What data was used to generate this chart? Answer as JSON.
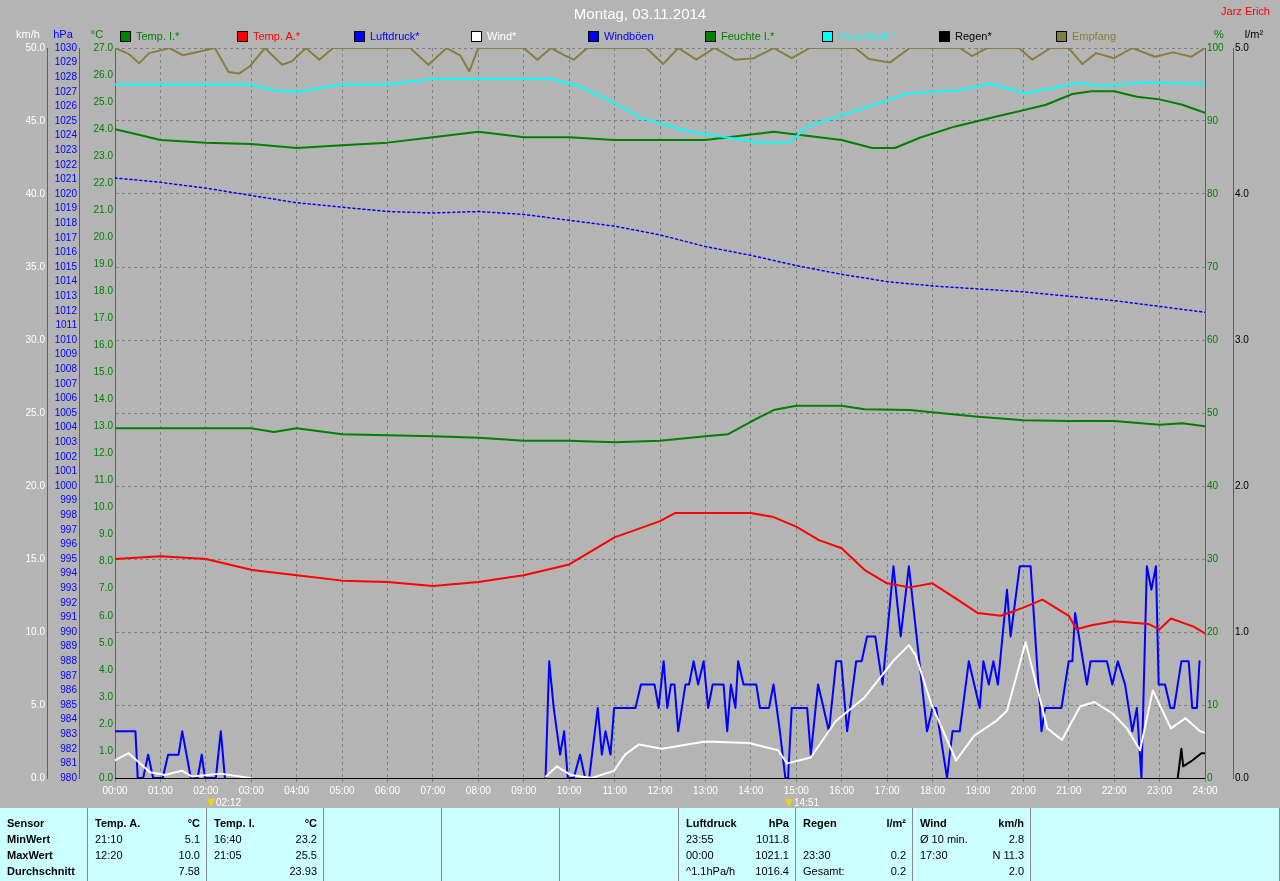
{
  "chart_data": [
    {
      "type": "line",
      "title": "Montag, 03.11.2014",
      "xlim": [
        0,
        24
      ],
      "xticks": [
        {
          "value": 0,
          "label": "00:00"
        },
        {
          "value": 1,
          "label": "01:00"
        },
        {
          "value": 2,
          "label": "02:00"
        },
        {
          "value": 3,
          "label": "03:00"
        },
        {
          "value": 4,
          "label": "04:00"
        },
        {
          "value": 5,
          "label": "05:00"
        },
        {
          "value": 6,
          "label": "06:00"
        },
        {
          "value": 7,
          "label": "07:00"
        },
        {
          "value": 8,
          "label": "08:00"
        },
        {
          "value": 9,
          "label": "09:00"
        },
        {
          "value": 10,
          "label": "10:00"
        },
        {
          "value": 11,
          "label": "11:00"
        },
        {
          "value": 12,
          "label": "12:00"
        },
        {
          "value": 13,
          "label": "13:00"
        },
        {
          "value": 14,
          "label": "14:00"
        },
        {
          "value": 15,
          "label": "15:00"
        },
        {
          "value": 16,
          "label": "16:00"
        },
        {
          "value": 17,
          "label": "17:00"
        },
        {
          "value": 18,
          "label": "18:00"
        },
        {
          "value": 19,
          "label": "19:00"
        },
        {
          "value": 20,
          "label": "20:00"
        },
        {
          "value": 21,
          "label": "21:00"
        },
        {
          "value": 22,
          "label": "22:00"
        },
        {
          "value": 23,
          "label": "23:00"
        },
        {
          "value": 24,
          "label": "24:00"
        }
      ],
      "ylabel": "°C",
      "ylim": [
        0,
        27
      ],
      "yticks": [
        {
          "value": 0,
          "label": "0.0"
        },
        {
          "value": 1,
          "label": "1.0"
        },
        {
          "value": 2,
          "label": "2.0"
        },
        {
          "value": 3,
          "label": "3.0"
        },
        {
          "value": 4,
          "label": "4.0"
        },
        {
          "value": 5,
          "label": "5.0"
        },
        {
          "value": 6,
          "label": "6.0"
        },
        {
          "value": 7,
          "label": "7.0"
        },
        {
          "value": 8,
          "label": "8.0"
        },
        {
          "value": 9,
          "label": "9.0"
        },
        {
          "value": 10,
          "label": "10.0"
        },
        {
          "value": 11,
          "label": "11.0"
        },
        {
          "value": 12,
          "label": "12.0"
        },
        {
          "value": 13,
          "label": "13.0"
        },
        {
          "value": 14,
          "label": "14.0"
        },
        {
          "value": 15,
          "label": "15.0"
        },
        {
          "value": 16,
          "label": "16.0"
        },
        {
          "value": 17,
          "label": "17.0"
        },
        {
          "value": 18,
          "label": "18.0"
        },
        {
          "value": 19,
          "label": "19.0"
        },
        {
          "value": 20,
          "label": "20.0"
        },
        {
          "value": 21,
          "label": "21.0"
        },
        {
          "value": 22,
          "label": "22.0"
        },
        {
          "value": 23,
          "label": "23.0"
        },
        {
          "value": 24,
          "label": "24.0"
        },
        {
          "value": 25,
          "label": "25.0"
        },
        {
          "value": 26,
          "label": "26.0"
        },
        {
          "value": 27,
          "label": "27.0"
        }
      ],
      "y2label": "hPa",
      "y2lim": [
        980,
        1030
      ],
      "y2ticks": [
        980,
        981,
        982,
        983,
        984,
        985,
        986,
        987,
        988,
        989,
        990,
        991,
        992,
        993,
        994,
        995,
        996,
        997,
        998,
        999,
        1000,
        1001,
        1002,
        1003,
        1004,
        1005,
        1006,
        1007,
        1008,
        1009,
        1010,
        1011,
        1012,
        1013,
        1014,
        1015,
        1016,
        1017,
        1018,
        1019,
        1020,
        1021,
        1022,
        1023,
        1024,
        1025,
        1026,
        1027,
        1028,
        1029,
        1030
      ],
      "y3label": "km/h",
      "y3lim": [
        0,
        50
      ],
      "y3ticks": [
        {
          "value": 0,
          "label": "0.0"
        },
        {
          "value": 5,
          "label": "5.0"
        },
        {
          "value": 10,
          "label": "10.0"
        },
        {
          "value": 15,
          "label": "15.0"
        },
        {
          "value": 20,
          "label": "20.0"
        },
        {
          "value": 25,
          "label": "25.0"
        },
        {
          "value": 30,
          "label": "30.0"
        },
        {
          "value": 35,
          "label": "35.0"
        },
        {
          "value": 40,
          "label": "40.0"
        },
        {
          "value": 45,
          "label": "45.0"
        },
        {
          "value": 50,
          "label": "50.0"
        }
      ],
      "grid": true,
      "legend": "top",
      "marker": "none",
      "series": [
        {
          "name": "Temp. I.*",
          "color": "#008000",
          "x": [
            0,
            0.5,
            1,
            2,
            3,
            4,
            5,
            6,
            7,
            8,
            9,
            10,
            11,
            12,
            13,
            14,
            14.5,
            15,
            16,
            16.67,
            17.17,
            17.75,
            18.5,
            19.5,
            20.5,
            21.08,
            21.5,
            22,
            22.5,
            23,
            23.5,
            24
          ],
          "values": [
            24.0,
            23.8,
            23.6,
            23.5,
            23.45,
            23.3,
            23.4,
            23.5,
            23.7,
            23.9,
            23.7,
            23.7,
            23.6,
            23.6,
            23.6,
            23.8,
            23.9,
            23.8,
            23.6,
            23.3,
            23.3,
            23.7,
            24.1,
            24.5,
            24.9,
            25.3,
            25.4,
            25.4,
            25.2,
            25.1,
            24.9,
            24.6
          ]
        },
        {
          "name": "Temp. A.*",
          "color": "#ff0000",
          "x": [
            0,
            1,
            2,
            3,
            4,
            5,
            6,
            7,
            8,
            9,
            10,
            11,
            12,
            12.33,
            13,
            14,
            14.5,
            15,
            15.5,
            16,
            16.5,
            17,
            17.5,
            18,
            18.5,
            19,
            19.5,
            20,
            20.42,
            21,
            21.17,
            21.5,
            22,
            22.75,
            23,
            23.25,
            23.75,
            24
          ],
          "values": [
            8.1,
            8.2,
            8.1,
            7.7,
            7.5,
            7.3,
            7.25,
            7.1,
            7.25,
            7.5,
            7.9,
            8.9,
            9.5,
            9.8,
            9.8,
            9.8,
            9.65,
            9.3,
            8.8,
            8.5,
            7.7,
            7.2,
            7.05,
            7.2,
            6.65,
            6.1,
            6.0,
            6.3,
            6.6,
            6.0,
            5.5,
            5.65,
            5.8,
            5.7,
            5.5,
            5.9,
            5.6,
            5.35
          ]
        },
        {
          "name": "Luftdruck*",
          "color": "#0000ff",
          "axis": "y2",
          "line_style": "dotted",
          "x": [
            0,
            1,
            2,
            3,
            4,
            5,
            6,
            7,
            8,
            9,
            10,
            11,
            12,
            13,
            14,
            15,
            16,
            17,
            18,
            19,
            20,
            21,
            22,
            23,
            24
          ],
          "values": [
            1021.1,
            1020.8,
            1020.4,
            1019.9,
            1019.4,
            1019.1,
            1018.8,
            1018.7,
            1018.8,
            1018.6,
            1018.2,
            1017.8,
            1017.2,
            1016.4,
            1015.8,
            1015.1,
            1014.5,
            1014.0,
            1013.7,
            1013.5,
            1013.3,
            1013.0,
            1012.7,
            1012.3,
            1011.9
          ]
        },
        {
          "name": "Wind*",
          "color": "#ffffff",
          "axis": "y3",
          "x": [
            0,
            0.3,
            0.77,
            1.1,
            1.47,
            1.7,
            2.33,
            2.97,
            6,
            9.49,
            9.73,
            10.04,
            10.5,
            10.99,
            11.23,
            11.54,
            12.04,
            13.0,
            13.96,
            14.6,
            14.8,
            15.32,
            15.87,
            16.5,
            17.16,
            17.48,
            17.63,
            17.97,
            18.52,
            18.92,
            19.4,
            19.64,
            20.05,
            20.53,
            20.85,
            21.25,
            21.57,
            21.97,
            22.28,
            22.57,
            22.85,
            23.25,
            23.57,
            23.89,
            24
          ],
          "values": [
            1.2,
            1.7,
            0.4,
            0.2,
            0.5,
            0.1,
            0.3,
            0.0,
            null,
            0.1,
            0.8,
            0.2,
            0.0,
            0.5,
            1.6,
            2.3,
            2.0,
            2.5,
            2.4,
            1.9,
            1.0,
            1.4,
            3.9,
            5.5,
            8.1,
            9.1,
            8.4,
            5.1,
            1.2,
            2.9,
            3.9,
            4.6,
            9.3,
            3.4,
            2.6,
            4.9,
            5.2,
            4.4,
            3.4,
            1.9,
            6.0,
            3.4,
            4.1,
            3.2,
            3.1
          ]
        },
        {
          "name": "Windböen",
          "color": "#0000ff",
          "axis": "y3",
          "x": [
            0,
            0.45,
            0.5,
            0.62,
            0.73,
            0.84,
            1.05,
            1.17,
            1.4,
            1.48,
            1.67,
            1.82,
            1.91,
            1.98,
            2.22,
            2.33,
            2.42,
            6,
            9.48,
            9.56,
            9.66,
            9.8,
            9.89,
            9.97,
            10.1,
            10.24,
            10.35,
            10.44,
            10.63,
            10.72,
            10.8,
            10.91,
            10.99,
            11.46,
            11.58,
            11.88,
            11.97,
            12.08,
            12.16,
            12.24,
            12.32,
            12.4,
            12.56,
            12.64,
            12.74,
            12.84,
            12.96,
            13.06,
            13.16,
            13.4,
            13.48,
            13.56,
            13.66,
            13.72,
            13.84,
            14.12,
            14.2,
            14.4,
            14.5,
            14.64,
            14.76,
            14.82,
            14.9,
            15.24,
            15.32,
            15.48,
            15.72,
            15.88,
            15.99,
            16.12,
            16.32,
            16.44,
            16.56,
            16.74,
            16.9,
            17.14,
            17.3,
            17.48,
            17.88,
            18.0,
            18.08,
            18.32,
            18.44,
            18.6,
            18.8,
            19.04,
            19.12,
            19.24,
            19.34,
            19.44,
            19.64,
            19.72,
            19.92,
            20.16,
            20.4,
            20.48,
            20.84,
            21.0,
            21.08,
            21.14,
            21.4,
            21.48,
            21.84,
            21.96,
            22.08,
            22.24,
            22.32,
            22.4,
            22.5,
            22.6,
            22.72,
            22.82,
            22.92,
            22.98,
            23.12,
            23.24,
            23.32,
            23.48,
            23.64,
            23.72,
            23.82,
            23.88
          ],
          "values": [
            3.2,
            3.2,
            0,
            0,
            1.6,
            0,
            0,
            1.6,
            1.6,
            3.2,
            0,
            0,
            1.6,
            0,
            0,
            3.2,
            0,
            null,
            0,
            8.0,
            4.8,
            1.6,
            3.2,
            0,
            0,
            1.6,
            0,
            0,
            4.8,
            1.6,
            3.2,
            1.6,
            4.8,
            4.8,
            6.4,
            6.4,
            4.8,
            8.0,
            4.8,
            6.4,
            6.4,
            3.2,
            6.4,
            6.4,
            8.0,
            6.4,
            8.0,
            4.8,
            6.4,
            6.4,
            3.2,
            6.4,
            4.8,
            8.0,
            6.4,
            6.4,
            4.8,
            4.8,
            6.4,
            3.2,
            0,
            0,
            4.8,
            4.8,
            1.6,
            6.4,
            3.2,
            8.0,
            8.0,
            3.2,
            8.0,
            8.0,
            9.7,
            9.7,
            6.4,
            14.5,
            9.7,
            14.5,
            3.2,
            4.8,
            4.8,
            0,
            3.2,
            3.2,
            8.0,
            4.8,
            8.0,
            6.4,
            8.0,
            6.4,
            12.9,
            9.7,
            14.5,
            14.5,
            3.2,
            4.8,
            4.8,
            8.0,
            8.0,
            11.3,
            6.4,
            8.0,
            8.0,
            6.4,
            8.0,
            6.4,
            4.8,
            3.2,
            4.8,
            0,
            14.5,
            12.9,
            14.5,
            6.4,
            6.4,
            4.8,
            4.8,
            8.0,
            8.0,
            4.8,
            4.8,
            8.0
          ]
        }
      ],
      "annotations": [
        "Jarz Erich",
        "02:12",
        "14:51",
        "Sensor\nMinWert\nMaxWert\nDurchschnitt",
        "Temp. A.\t°C\n21:10\t5.1\n12:20\t10.0\n\t7.58",
        "Temp. I.\t°C\n16:40\t23.2\n21:05\t25.5\n\t23.93",
        "Luftdruck\thPa\n23:55\t1011.8\n00:00\t1021.1\n^1.1hPa/h\t1016.4",
        "Regen\tl/m²\n\t\n23:30\t0.2\nGesamt:\t0.2",
        "Wind\tkm/h\nØ 10 min.\t2.8\n17:30\tN 11.3\n\t2.0"
      ]
    },
    {
      "type": "line",
      "xlim": [
        0,
        24
      ],
      "tick_labels": "y",
      "ylabel": "%",
      "ylim": [
        0,
        100
      ],
      "yticks": [
        0,
        10,
        20,
        30,
        40,
        50,
        60,
        70,
        80,
        90,
        100
      ],
      "y2label": "l/m²",
      "y2lim": [
        0,
        5
      ],
      "y2ticks": [
        {
          "value": 0,
          "label": "0.0"
        },
        {
          "value": 1,
          "label": "1.0"
        },
        {
          "value": 2,
          "label": "2.0"
        },
        {
          "value": 3,
          "label": "3.0"
        },
        {
          "value": 4,
          "label": "4.0"
        },
        {
          "value": 5,
          "label": "5.0"
        }
      ],
      "legend": "top",
      "marker": "none",
      "series": [
        {
          "name": "Feuchte I.*",
          "color": "#008000",
          "x": [
            0,
            3,
            3.5,
            4,
            5,
            7,
            8,
            9,
            10,
            11,
            12,
            13,
            13.5,
            14,
            14.5,
            15,
            16,
            16.5,
            17.5,
            18,
            19,
            20,
            21,
            22,
            23,
            23.5,
            24
          ],
          "values": [
            47.9,
            47.9,
            47.4,
            47.9,
            47.1,
            46.8,
            46.6,
            46.2,
            46.2,
            46.0,
            46.2,
            46.8,
            47.1,
            48.8,
            50.4,
            51.0,
            51.0,
            50.5,
            50.4,
            50.1,
            49.5,
            49.0,
            48.9,
            48.9,
            48.4,
            48.6,
            48.2
          ]
        },
        {
          "name": "Feuchte A.*",
          "color": "#00ffff",
          "x": [
            0,
            1,
            2,
            3,
            3.5,
            4,
            5,
            6,
            7,
            8,
            9,
            9.6,
            10.2,
            11,
            11.56,
            12.6,
            14.15,
            14.86,
            15.26,
            16.6,
            17.46,
            18.6,
            19.27,
            20.06,
            21.2,
            21.8,
            22.7,
            23.67,
            24
          ],
          "values": [
            95.0,
            95.0,
            95.0,
            95.0,
            94.2,
            94.0,
            95.0,
            95.0,
            95.8,
            95.8,
            95.8,
            95.8,
            94.8,
            92.5,
            90.5,
            88.6,
            87.1,
            87.1,
            89.3,
            92.0,
            93.8,
            94.2,
            95.1,
            93.8,
            95.2,
            94.8,
            95.3,
            95.1,
            95.1
          ]
        },
        {
          "name": "Regen*",
          "color": "#000000",
          "axis": "y2",
          "x": [
            23.4,
            23.48,
            23.52,
            23.72,
            23.92,
            24
          ],
          "values": [
            0,
            0.2,
            0.08,
            0.12,
            0.17,
            0.17
          ]
        },
        {
          "name": "Empfang",
          "color": "#808040",
          "x": [
            0,
            0.3,
            0.53,
            0.75,
            1.2,
            1.5,
            2.2,
            2.5,
            2.73,
            2.97,
            3.3,
            3.68,
            3.9,
            4.2,
            4.5,
            4.8,
            6.5,
            6.9,
            7.3,
            7.6,
            7.8,
            8.0,
            9.0,
            9.3,
            9.6,
            9.9,
            10.1,
            10.4,
            11.7,
            12.07,
            12.4,
            12.8,
            13.2,
            13.65,
            14.07,
            14.5,
            14.9,
            15.3,
            16.3,
            16.6,
            17.06,
            17.5,
            18.6,
            18.87,
            19.2,
            19.9,
            20.2,
            20.6,
            21.0,
            21.3,
            21.6,
            22.0,
            22.4,
            22.9,
            23.3,
            23.7,
            24
          ],
          "values": [
            100,
            99.2,
            97.9,
            99.3,
            100,
            99.0,
            100,
            96.7,
            96.5,
            97.5,
            100,
            97.7,
            98.2,
            100,
            98.4,
            100,
            100,
            97.7,
            100,
            99.0,
            96.8,
            100,
            100,
            98.4,
            100,
            99.0,
            98.4,
            100,
            100,
            97.8,
            100,
            98.4,
            100,
            98.4,
            98.6,
            100,
            98.6,
            100,
            100,
            98.5,
            98.0,
            100,
            100,
            98.9,
            100,
            100,
            98.4,
            100,
            100,
            97.8,
            99.3,
            98.6,
            100,
            98.8,
            99.4,
            98.8,
            100
          ]
        }
      ]
    }
  ]
}
